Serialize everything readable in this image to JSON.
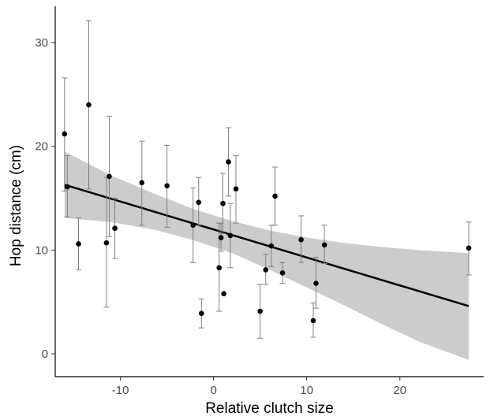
{
  "chart_data": {
    "type": "scatter",
    "xlabel": "Relative clutch size",
    "ylabel": "Hop distance (cm)",
    "xlim": [
      -17,
      29
    ],
    "ylim": [
      -2.2,
      33.5
    ],
    "x_ticks": [
      -10,
      0,
      10,
      20
    ],
    "y_ticks": [
      0,
      10,
      20,
      30
    ],
    "x_tick_labels": [
      "-10",
      "0",
      "10",
      "20"
    ],
    "y_tick_labels": [
      "0",
      "10",
      "20",
      "30"
    ],
    "grid": false,
    "legend": "none",
    "colors": {
      "points": "#000000",
      "errorbar": "#808080",
      "ribbon": "#cccccc",
      "line": "#000000"
    },
    "points": [
      {
        "x": -16.0,
        "y": 21.2,
        "low": 15.7,
        "high": 26.6
      },
      {
        "x": -15.7,
        "y": 16.1,
        "low": 13.2,
        "high": 19.1
      },
      {
        "x": -14.5,
        "y": 10.6,
        "low": 8.1,
        "high": 13.1
      },
      {
        "x": -13.4,
        "y": 24.0,
        "low": 15.9,
        "high": 32.1
      },
      {
        "x": -11.5,
        "y": 10.7,
        "low": 4.5,
        "high": 17.0
      },
      {
        "x": -11.2,
        "y": 17.1,
        "low": 11.3,
        "high": 22.9
      },
      {
        "x": -10.6,
        "y": 12.1,
        "low": 9.2,
        "high": 15.0
      },
      {
        "x": -7.7,
        "y": 16.5,
        "low": 12.4,
        "high": 20.5
      },
      {
        "x": -5.0,
        "y": 16.2,
        "low": 12.2,
        "high": 20.1
      },
      {
        "x": -2.2,
        "y": 12.4,
        "low": 8.8,
        "high": 16.0
      },
      {
        "x": -1.6,
        "y": 14.6,
        "low": 12.4,
        "high": 17.0
      },
      {
        "x": -1.3,
        "y": 3.9,
        "low": 2.5,
        "high": 5.3
      },
      {
        "x": 0.6,
        "y": 8.3,
        "low": 4.1,
        "high": 12.6
      },
      {
        "x": 0.8,
        "y": 11.2,
        "low": 9.9,
        "high": 12.6
      },
      {
        "x": 1.0,
        "y": 14.5,
        "low": 11.6,
        "high": 17.4
      },
      {
        "x": 1.1,
        "y": 5.8,
        "low": 5.8,
        "high": 5.8
      },
      {
        "x": 1.6,
        "y": 18.5,
        "low": 15.2,
        "high": 21.8
      },
      {
        "x": 1.8,
        "y": 11.4,
        "low": 8.3,
        "high": 14.5
      },
      {
        "x": 2.4,
        "y": 15.9,
        "low": 12.6,
        "high": 19.1
      },
      {
        "x": 5.0,
        "y": 4.1,
        "low": 1.5,
        "high": 6.7
      },
      {
        "x": 5.6,
        "y": 8.1,
        "low": 6.7,
        "high": 9.6
      },
      {
        "x": 6.2,
        "y": 10.4,
        "low": 8.4,
        "high": 12.4
      },
      {
        "x": 6.6,
        "y": 15.2,
        "low": 12.4,
        "high": 18.0
      },
      {
        "x": 7.4,
        "y": 7.8,
        "low": 6.8,
        "high": 8.8
      },
      {
        "x": 9.4,
        "y": 11.0,
        "low": 8.8,
        "high": 13.3
      },
      {
        "x": 10.7,
        "y": 3.2,
        "low": 1.6,
        "high": 4.9
      },
      {
        "x": 11.0,
        "y": 6.8,
        "low": 4.4,
        "high": 9.3
      },
      {
        "x": 11.9,
        "y": 10.5,
        "low": 8.7,
        "high": 12.4
      },
      {
        "x": 27.4,
        "y": 10.2,
        "low": 7.6,
        "high": 12.7
      }
    ],
    "fit_line": {
      "x": [
        -16.0,
        27.4
      ],
      "y": [
        16.3,
        4.6
      ]
    },
    "confidence_band": {
      "x": [
        -16.0,
        -11.0,
        -6.0,
        -2.0,
        2.0,
        6.0,
        10.0,
        14.0,
        18.0,
        22.0,
        27.4
      ],
      "lower": [
        13.1,
        12.7,
        11.9,
        10.9,
        9.7,
        8.1,
        6.4,
        4.7,
        2.9,
        1.2,
        -0.6
      ],
      "upper": [
        19.5,
        17.2,
        15.3,
        13.9,
        12.8,
        11.9,
        11.2,
        10.7,
        10.3,
        10.0,
        9.7
      ]
    }
  }
}
